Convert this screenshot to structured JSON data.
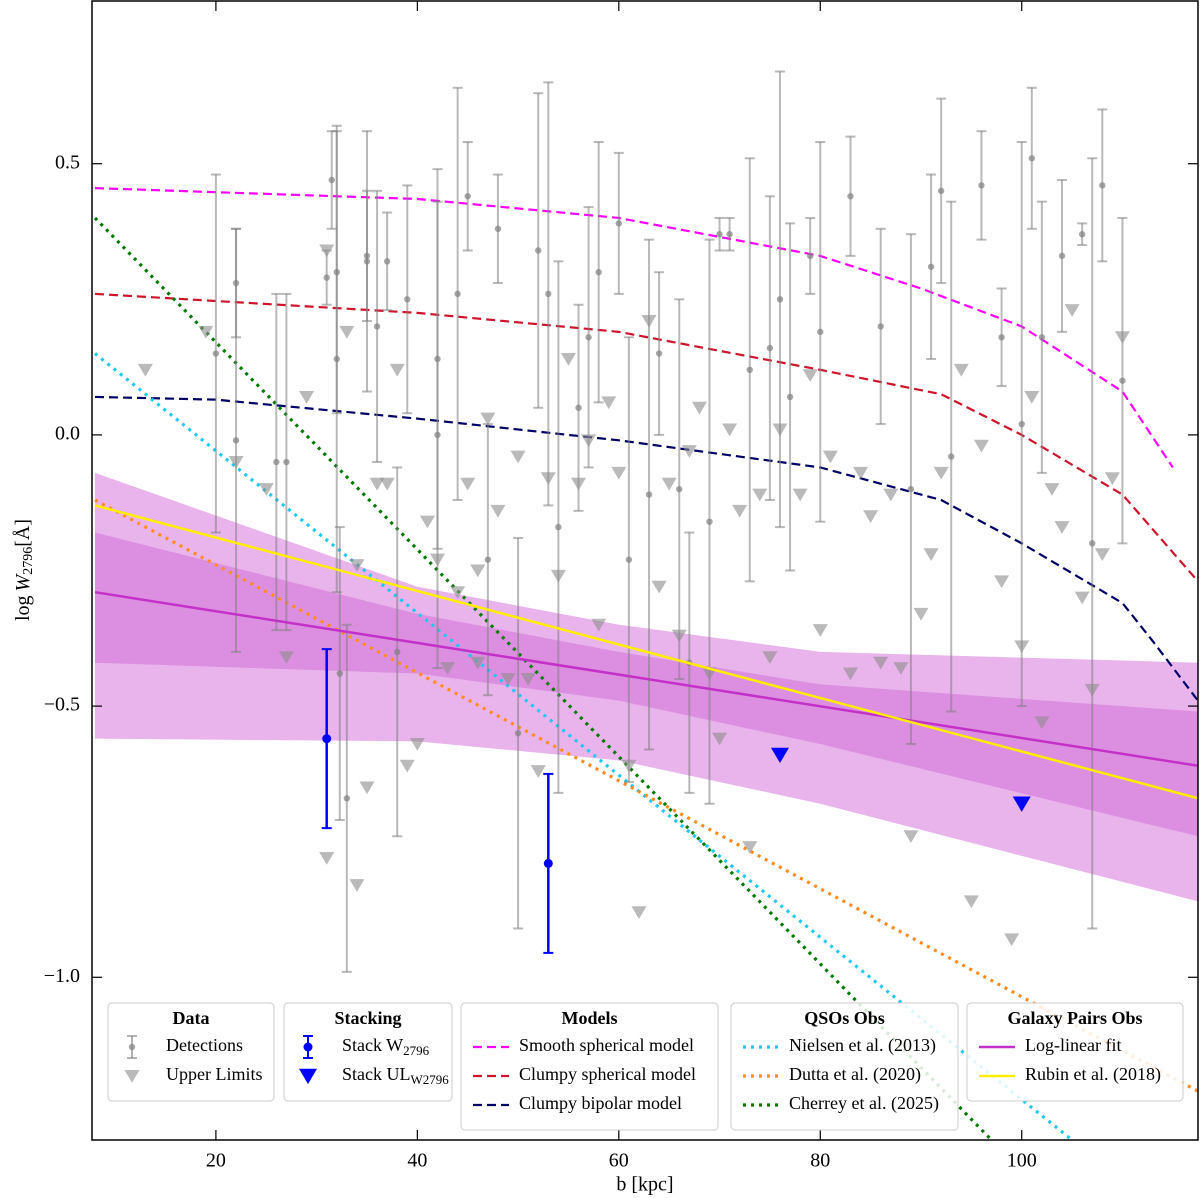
{
  "chart_data": {
    "type": "scatter",
    "xlabel": "b [kpc]",
    "ylabel": {
      "prefix": "log",
      "var": "W",
      "sub": "2796",
      "unit": "[Å]"
    },
    "xlim": [
      7.7,
      117.5
    ],
    "ylim": [
      -1.3,
      0.8
    ],
    "xticks": [
      20,
      40,
      60,
      80,
      100
    ],
    "yticks": [
      {
        "value": -1.0,
        "label": "−1.0"
      },
      {
        "value": -0.5,
        "label": "−0.5"
      },
      {
        "value": 0.0,
        "label": "0.0"
      },
      {
        "value": 0.5,
        "label": "0.5"
      }
    ],
    "bands": [
      {
        "color": "#e9b3ec",
        "x": [
          8,
          40,
          60,
          80,
          117.5
        ],
        "upper": [
          -0.07,
          -0.28,
          -0.35,
          -0.4,
          -0.42
        ],
        "lower": [
          -0.56,
          -0.565,
          -0.6,
          -0.68,
          -0.86
        ]
      },
      {
        "color": "#dc8fe0",
        "x": [
          8,
          40,
          60,
          80,
          117.5
        ],
        "upper": [
          -0.18,
          -0.33,
          -0.4,
          -0.46,
          -0.51
        ],
        "lower": [
          -0.42,
          -0.44,
          -0.49,
          -0.57,
          -0.74
        ]
      }
    ],
    "groups": [
      {
        "title": "Data",
        "series": [
          {
            "name": "Detections",
            "kind": "errorbar",
            "color": "#808080",
            "x": [
              20,
              22,
              22,
              26,
              27,
              31,
              31.5,
              32,
              32,
              32.3,
              33,
              35,
              35,
              36,
              37,
              38,
              39,
              42,
              42,
              44,
              45,
              47,
              48,
              50,
              52,
              53,
              54,
              56,
              57,
              58,
              60,
              61,
              63,
              64,
              66,
              67,
              69,
              70,
              71,
              73,
              75,
              76,
              77,
              79,
              80,
              83,
              86,
              89,
              91,
              92,
              93,
              96,
              98,
              100,
              101,
              102,
              104,
              106,
              107,
              108,
              110
            ],
            "values": [
              0.15,
              0.28,
              -0.01,
              -0.05,
              -0.05,
              0.29,
              0.47,
              0.3,
              0.14,
              -0.44,
              -0.67,
              0.33,
              0.32,
              0.2,
              0.32,
              -0.4,
              0.25,
              0.14,
              0.0,
              0.26,
              0.44,
              -0.23,
              0.38,
              -0.55,
              0.34,
              0.26,
              -0.17,
              0.05,
              0.18,
              0.3,
              0.39,
              -0.23,
              -0.11,
              0.15,
              -0.1,
              -0.42,
              -0.16,
              0.37,
              0.37,
              0.12,
              0.16,
              0.25,
              0.07,
              0.33,
              0.19,
              0.44,
              0.2,
              -0.1,
              0.31,
              0.45,
              -0.04,
              0.46,
              0.18,
              0.02,
              0.51,
              0.18,
              0.33,
              0.37,
              -0.2,
              0.46,
              0.1
            ],
            "errors": [
              0.33,
              0.1,
              0.39,
              0.31,
              0.31,
              0.05,
              0.09,
              0.26,
              0.43,
              0.27,
              0.32,
              0.12,
              0.24,
              0.25,
              0.09,
              0.34,
              0.21,
              0.35,
              0.43,
              0.38,
              0.1,
              0.25,
              0.1,
              0.36,
              0.29,
              0.39,
              0.49,
              0.19,
              0.24,
              0.24,
              0.13,
              0.41,
              0.47,
              0.15,
              0.35,
              0.24,
              0.52,
              0.03,
              0.03,
              0.39,
              0.28,
              0.42,
              0.32,
              0.07,
              0.35,
              0.11,
              0.18,
              0.47,
              0.17,
              0.17,
              0.47,
              0.1,
              0.09,
              0.52,
              0.13,
              0.25,
              0.14,
              0.02,
              0.71,
              0.14,
              0.3
            ]
          },
          {
            "name": "Upper Limits",
            "kind": "triangle",
            "color": "#8c8c8c",
            "x": [
              13,
              19,
              22,
              25,
              27,
              29,
              31,
              31,
              33,
              34,
              35,
              34,
              36,
              37,
              38,
              39,
              40,
              41,
              42,
              43,
              44,
              45,
              46,
              46,
              47,
              48,
              49,
              50,
              51,
              52,
              53,
              54,
              55,
              56,
              57,
              58,
              59,
              60,
              61,
              62,
              63,
              64,
              65,
              66,
              67,
              68,
              69,
              70,
              71,
              72,
              73,
              74,
              75,
              76,
              78,
              79,
              80,
              81,
              83,
              84,
              85,
              86,
              87,
              88,
              89,
              90,
              91,
              92,
              94,
              95,
              96,
              98,
              99,
              100,
              101,
              102,
              103,
              104,
              105,
              106,
              107,
              108,
              109,
              110
            ],
            "values": [
              0.12,
              0.19,
              -0.05,
              -0.1,
              -0.41,
              0.07,
              -0.78,
              0.34,
              0.19,
              -0.24,
              -0.65,
              -0.83,
              -0.09,
              -0.09,
              0.12,
              -0.61,
              -0.57,
              -0.16,
              -0.23,
              -0.43,
              -0.29,
              -0.09,
              -0.42,
              -0.25,
              0.03,
              -0.14,
              -0.45,
              -0.04,
              -0.45,
              -0.62,
              -0.08,
              -0.26,
              0.14,
              -0.09,
              -0.01,
              -0.35,
              0.06,
              -0.07,
              -0.61,
              -0.88,
              0.21,
              -0.28,
              -0.09,
              -0.37,
              -0.03,
              0.05,
              -0.44,
              -0.56,
              0.01,
              -0.14,
              -0.76,
              -0.11,
              -0.41,
              0.01,
              -0.11,
              0.11,
              -0.36,
              -0.04,
              -0.44,
              -0.07,
              -0.15,
              -0.42,
              -0.11,
              -0.43,
              -0.74,
              -0.33,
              -0.22,
              -0.07,
              0.12,
              -0.86,
              -0.02,
              -0.27,
              -0.93,
              -0.39,
              0.07,
              -0.53,
              -0.1,
              -0.17,
              0.23,
              -0.3,
              -0.47,
              -0.22,
              -0.08,
              0.18
            ]
          }
        ]
      },
      {
        "title": "Stacking",
        "series": [
          {
            "name": "Stack W",
            "name_sub": "2796",
            "kind": "errorbar",
            "color": "#0000ff",
            "x": [
              31,
              53
            ],
            "values": [
              -0.56,
              -0.79
            ],
            "errors": [
              0.165,
              0.165
            ]
          },
          {
            "name": "Stack UL",
            "name_sub": "W2796",
            "kind": "triangle",
            "color": "#0000ff",
            "x": [
              76,
              100
            ],
            "values": [
              -0.59,
              -0.68
            ]
          }
        ]
      },
      {
        "title": "Models",
        "series": [
          {
            "name": "Smooth spherical model",
            "kind": "dashed",
            "color": "#ff00ff",
            "x": [
              8,
              40,
              60,
              80,
              90,
              100,
              110,
              115
            ],
            "values": [
              0.455,
              0.435,
              0.4,
              0.33,
              0.27,
              0.2,
              0.08,
              -0.06
            ]
          },
          {
            "name": "Clumpy spherical model",
            "kind": "dashed",
            "color": "#d0142c",
            "x": [
              8,
              40,
              60,
              80,
              92,
              100,
              110,
              117.5
            ],
            "values": [
              0.26,
              0.225,
              0.19,
              0.12,
              0.075,
              0.0,
              -0.11,
              -0.27
            ]
          },
          {
            "name": "Clumpy bipolar model",
            "kind": "dashed",
            "color": "#000066",
            "x": [
              8,
              20,
              40,
              60,
              80,
              92,
              100,
              110,
              113,
              117.5
            ],
            "values": [
              0.07,
              0.065,
              0.03,
              -0.01,
              -0.06,
              -0.12,
              -0.2,
              -0.31,
              -0.38,
              -0.49
            ]
          }
        ]
      },
      {
        "title": "QSOs Obs",
        "series": [
          {
            "name": "Nielsen et al. (2013)",
            "kind": "dotted",
            "color": "#1ec8f0",
            "x": [
              8,
              105
            ],
            "values": [
              0.15,
              -1.3
            ]
          },
          {
            "name": "Dutta et al. (2020)",
            "kind": "dotted",
            "color": "#ff8c1a",
            "x": [
              8,
              117.5
            ],
            "values": [
              -0.12,
              -1.21
            ]
          },
          {
            "name": "Cherrey et al. (2025)",
            "kind": "dotted",
            "color": "#007a00",
            "x": [
              8,
              97
            ],
            "values": [
              0.4,
              -1.3
            ]
          }
        ]
      },
      {
        "title": "Galaxy Pairs Obs",
        "series": [
          {
            "name": "Log-linear fit",
            "kind": "solid",
            "color": "#c431c8",
            "x": [
              8,
              117.5
            ],
            "values": [
              -0.29,
              -0.61
            ]
          },
          {
            "name": "Rubin et al. (2018)",
            "kind": "solid",
            "color": "#ffee00",
            "x": [
              8,
              117.5
            ],
            "values": [
              -0.13,
              -0.67
            ]
          }
        ]
      }
    ]
  }
}
